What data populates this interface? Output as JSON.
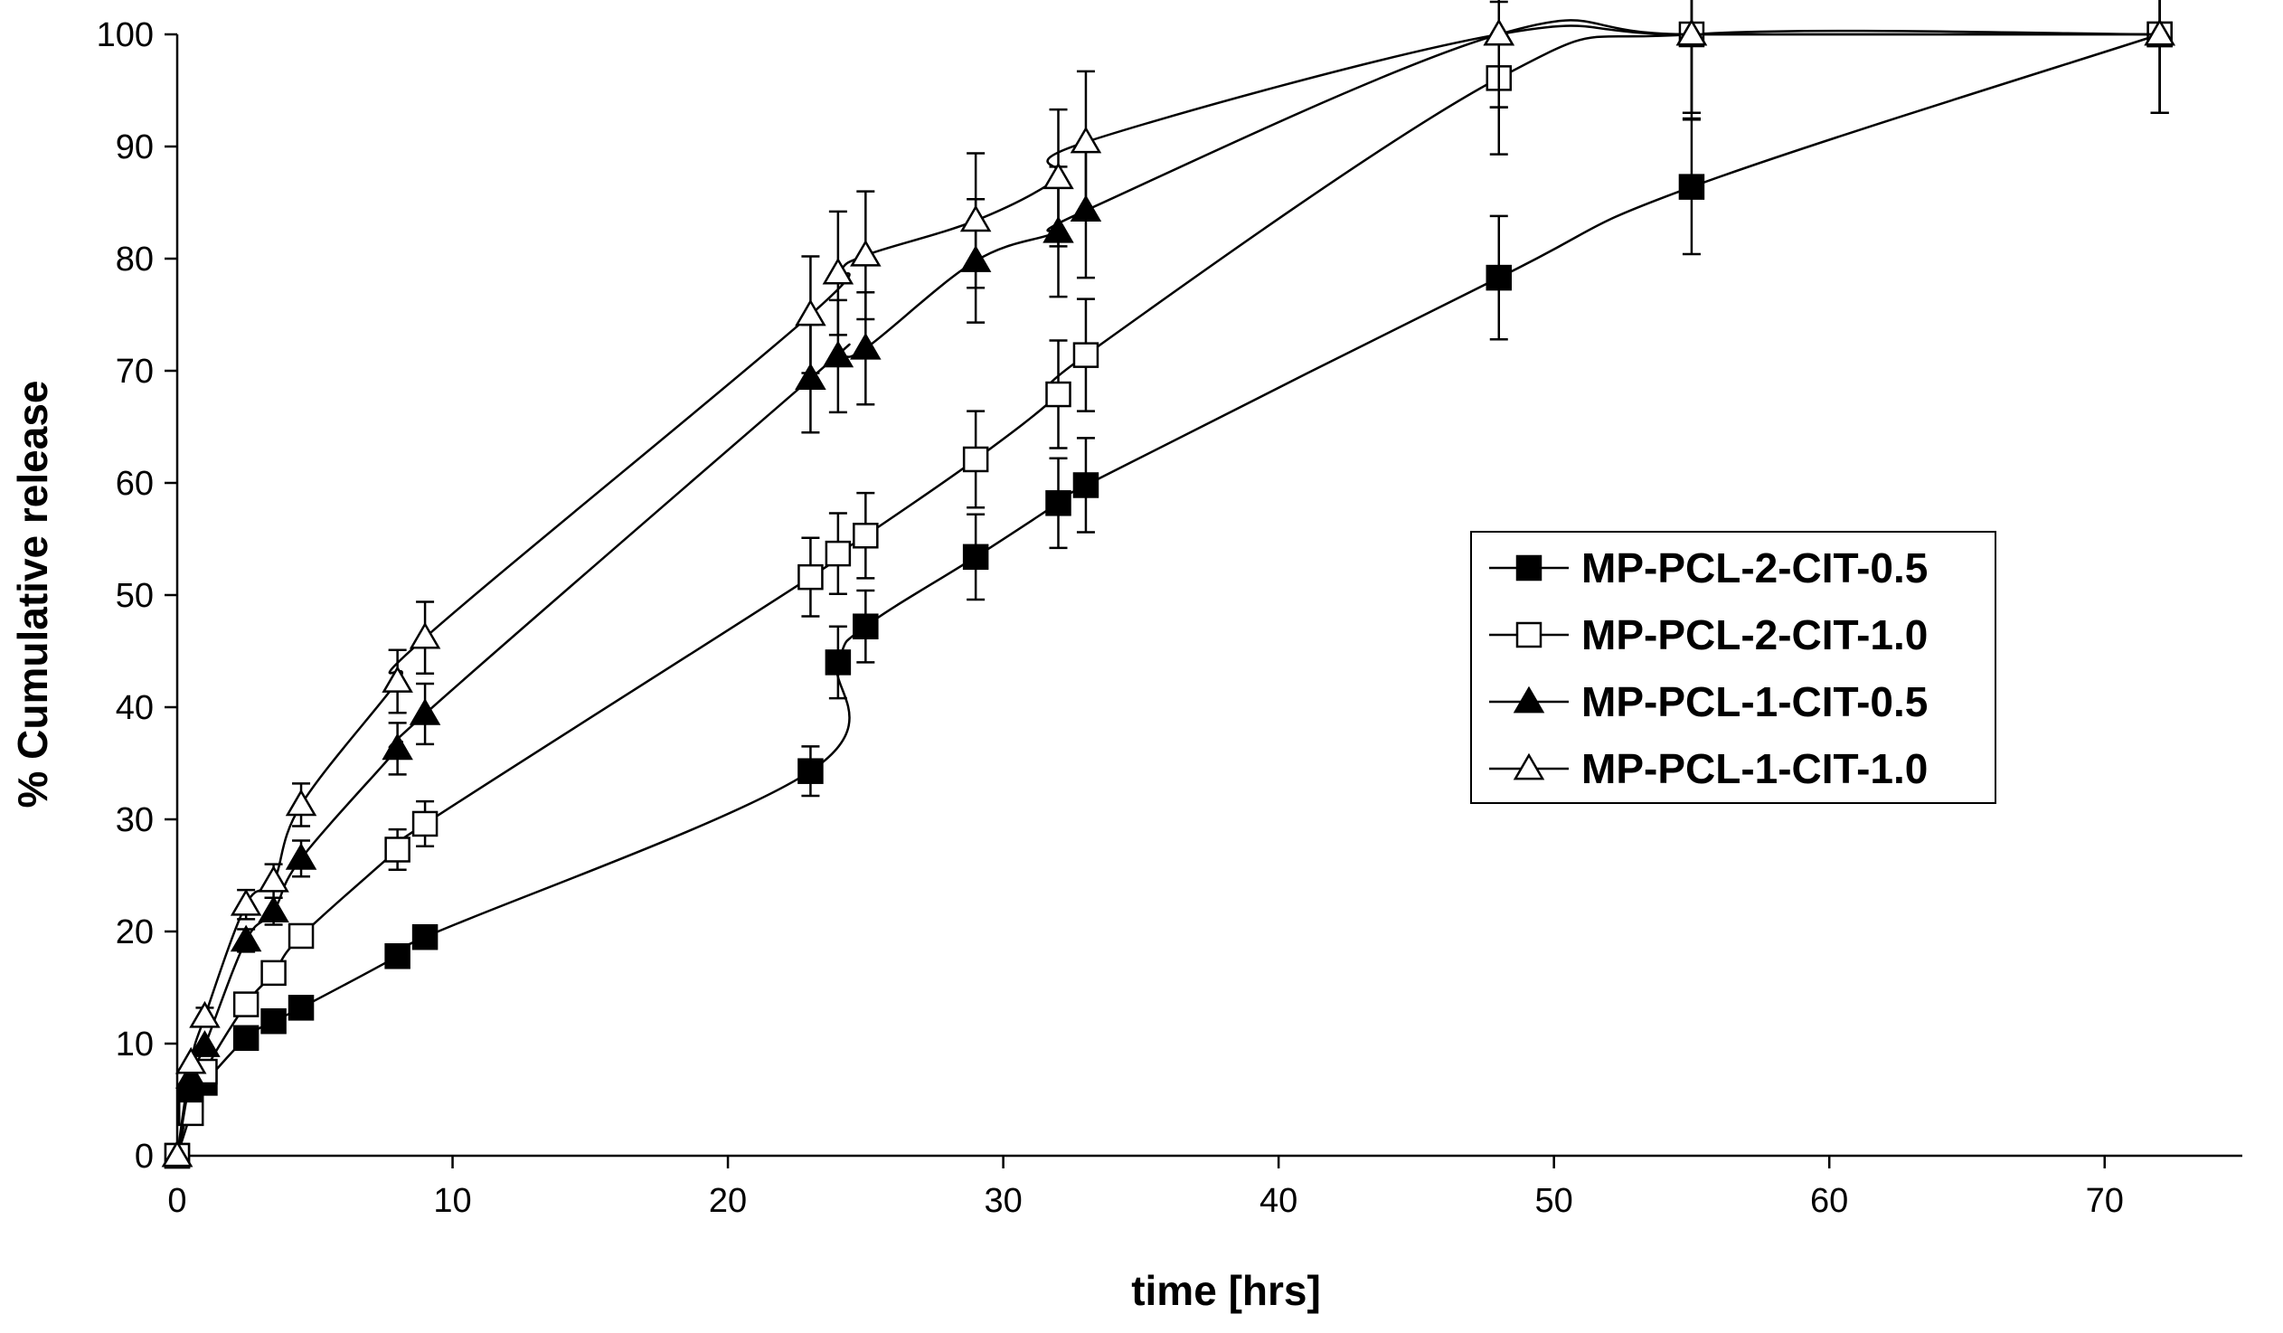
{
  "chart_data": {
    "type": "line",
    "title": "",
    "xlabel": "time [hrs]",
    "ylabel": "% Cumulative release",
    "xlim": [
      0,
      75
    ],
    "ylim": [
      0,
      100
    ],
    "xticks": [
      0,
      10,
      20,
      30,
      40,
      50,
      60,
      70
    ],
    "yticks": [
      0,
      10,
      20,
      30,
      40,
      50,
      60,
      70,
      80,
      90,
      100
    ],
    "grid": false,
    "legend_position": "right-center",
    "series": [
      {
        "name": "MP-PCL-2-CIT-0.5",
        "marker": "square",
        "filled": true,
        "x": [
          0,
          0.5,
          1,
          2.5,
          3.5,
          4.5,
          8,
          9,
          23,
          24,
          25,
          29,
          32,
          33,
          48,
          55,
          72
        ],
        "y": [
          0,
          5,
          6.5,
          10.5,
          12,
          13.2,
          17.8,
          19.5,
          34.3,
          44,
          47.2,
          53.4,
          58.2,
          59.8,
          78.3,
          86.4,
          100
        ],
        "err": [
          0,
          0,
          0,
          0,
          0,
          0,
          0.8,
          0.8,
          2.2,
          3.2,
          3.2,
          3.8,
          4,
          4.2,
          5.5,
          6,
          7
        ]
      },
      {
        "name": "MP-PCL-2-CIT-1.0",
        "marker": "square",
        "filled": false,
        "x": [
          0,
          0.5,
          1,
          2.5,
          3.5,
          4.5,
          8,
          9,
          23,
          24,
          25,
          29,
          32,
          33,
          48,
          55,
          72
        ],
        "y": [
          0,
          3.8,
          7.5,
          13.5,
          16.3,
          19.6,
          27.3,
          29.6,
          51.6,
          53.7,
          55.3,
          62.1,
          67.9,
          71.4,
          96.1,
          100,
          100
        ],
        "err": [
          0,
          0,
          0,
          0,
          0,
          0.6,
          1.8,
          2,
          3.5,
          3.6,
          3.8,
          4.3,
          4.8,
          5,
          6.8,
          7.5,
          7
        ]
      },
      {
        "name": "MP-PCL-1-CIT-0.5",
        "marker": "triangle",
        "filled": true,
        "x": [
          0,
          0.5,
          1,
          2.5,
          3.5,
          4.5,
          8,
          9,
          23,
          24,
          25,
          29,
          32,
          33,
          48,
          55,
          72
        ],
        "y": [
          0,
          7,
          9.8,
          19.2,
          21.8,
          26.5,
          36.3,
          39.4,
          69.3,
          71.3,
          72,
          79.8,
          82.4,
          84.3,
          100,
          100,
          100
        ],
        "err": [
          0,
          0,
          0,
          1,
          1.2,
          1.6,
          2.3,
          2.7,
          4.8,
          5,
          5,
          5.5,
          5.8,
          6,
          6.5,
          7,
          7
        ]
      },
      {
        "name": "MP-PCL-1-CIT-1.0",
        "marker": "triangle",
        "filled": false,
        "x": [
          0,
          0.5,
          1,
          2.5,
          3.5,
          4.5,
          8,
          9,
          23,
          24,
          25,
          29,
          32,
          33,
          48,
          55,
          72
        ],
        "y": [
          0,
          8.3,
          12.4,
          22.4,
          24.5,
          31.3,
          42.3,
          46.2,
          75,
          78.7,
          80.3,
          83.4,
          87.2,
          90.4,
          100,
          100,
          100
        ],
        "err": [
          0,
          0,
          0.8,
          1.3,
          1.5,
          1.9,
          2.8,
          3.2,
          5.2,
          5.5,
          5.7,
          6,
          6.1,
          6.3,
          6.5,
          7,
          7
        ]
      }
    ]
  }
}
